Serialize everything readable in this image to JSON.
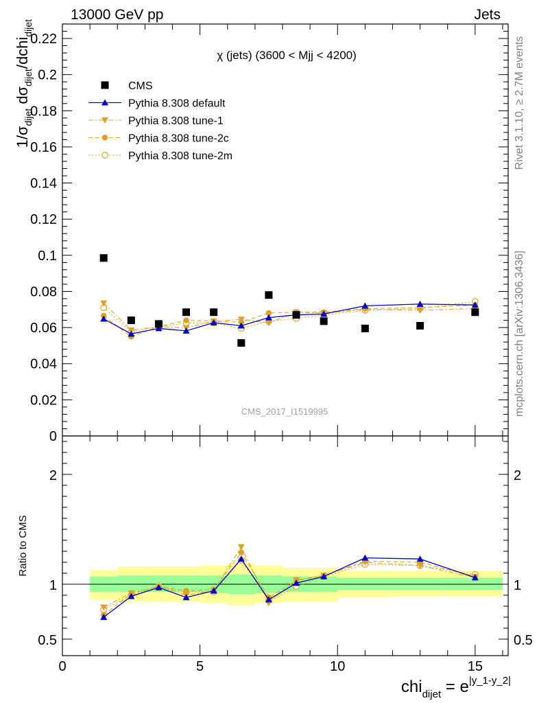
{
  "header": {
    "left": "13000 GeV pp",
    "right": "Jets"
  },
  "side_labels": {
    "rivet": "Rivet 3.1.10, ≥ 2.7M events",
    "mcplots": "mcplots.cern.ch [arXiv:1306.3436]"
  },
  "colors": {
    "cms": "#000000",
    "default": "#0000cc",
    "tunes": "#e0a020",
    "band_inner": "#99ff99",
    "band_outer": "#ffff99"
  },
  "chart_data": [
    {
      "type": "line",
      "panel": "main",
      "title": "χ (jets) (3600 < Mjj < 4200)",
      "watermark": "CMS_2017_I1519995",
      "ylabel": {
        "base": "1/σ",
        "sub1": "dijet",
        "mid": " dσ",
        "sub2": "dijet",
        "tail": "/dchi",
        "sub3": "dijet"
      },
      "xlim": [
        0,
        16.2
      ],
      "ylim": [
        0,
        0.228
      ],
      "yticks": [
        0,
        0.02,
        0.04,
        0.06,
        0.08,
        0.1,
        0.12,
        0.14,
        0.16,
        0.18,
        0.2,
        0.22
      ],
      "ytick_labels": [
        "0",
        "0.02",
        "0.04",
        "0.06",
        "0.08",
        "0.1",
        "0.12",
        "0.14",
        "0.16",
        "0.18",
        "0.2",
        "0.22"
      ],
      "legend_position": "top-left",
      "series": [
        {
          "name": "CMS",
          "marker": "square",
          "x": [
            1.5,
            2.5,
            3.5,
            4.5,
            5.5,
            6.5,
            7.5,
            8.5,
            9.5,
            11,
            13,
            15
          ],
          "y": [
            0.0985,
            0.064,
            0.062,
            0.0685,
            0.0685,
            0.0515,
            0.078,
            0.067,
            0.0635,
            0.0595,
            0.061,
            0.0685
          ]
        },
        {
          "name": "Pythia 8.308 default",
          "marker": "triangle-up",
          "style": "solid",
          "x": [
            1.5,
            2.5,
            3.5,
            4.5,
            5.5,
            6.5,
            7.5,
            8.5,
            9.5,
            11,
            13,
            15
          ],
          "y": [
            0.0648,
            0.0565,
            0.0595,
            0.0582,
            0.0627,
            0.061,
            0.0655,
            0.067,
            0.0675,
            0.072,
            0.073,
            0.0725
          ]
        },
        {
          "name": "Pythia 8.308 tune-1",
          "marker": "triangle-down",
          "style": "dashdot",
          "x": [
            1.5,
            2.5,
            3.5,
            4.5,
            5.5,
            6.5,
            7.5,
            8.5,
            9.5,
            11,
            13,
            15
          ],
          "y": [
            0.0735,
            0.0585,
            0.0605,
            0.0598,
            0.0635,
            0.0645,
            0.0625,
            0.0685,
            0.068,
            0.07,
            0.0695,
            0.0705
          ]
        },
        {
          "name": "Pythia 8.308 tune-2c",
          "marker": "circle",
          "style": "dashed",
          "x": [
            1.5,
            2.5,
            3.5,
            4.5,
            5.5,
            6.5,
            7.5,
            8.5,
            9.5,
            11,
            13,
            15
          ],
          "y": [
            0.0665,
            0.055,
            0.0605,
            0.064,
            0.0635,
            0.063,
            0.068,
            0.0685,
            0.0685,
            0.0705,
            0.071,
            0.0725
          ]
        },
        {
          "name": "Pythia 8.308 tune-2m",
          "marker": "circle-open",
          "style": "dotted",
          "x": [
            1.5,
            2.5,
            3.5,
            4.5,
            5.5,
            6.5,
            7.5,
            8.5,
            9.5,
            11,
            13,
            15
          ],
          "y": [
            0.071,
            0.0575,
            0.0605,
            0.0625,
            0.0625,
            0.0595,
            0.0635,
            0.065,
            0.067,
            0.0695,
            0.0705,
            0.0745
          ]
        }
      ]
    },
    {
      "type": "line",
      "panel": "ratio",
      "ylabel": "Ratio to CMS",
      "xlabel": {
        "base": "chi",
        "sub": "dijet",
        "mid": " = e",
        "sup": "|y_1-y_2|"
      },
      "xlim": [
        0,
        16.2
      ],
      "xticks": [
        0,
        5,
        10,
        15
      ],
      "xtick_labels": [
        "0",
        "5",
        "10",
        "15"
      ],
      "ylim": [
        0.35,
        2.35
      ],
      "yticks": [
        0.5,
        1,
        2
      ],
      "ytick_labels": [
        "0.5",
        "1",
        "2"
      ],
      "bands": [
        {
          "x0": 1,
          "x1": 2,
          "inner": [
            0.93,
            1.07
          ],
          "outer": [
            0.86,
            1.13
          ]
        },
        {
          "x0": 2,
          "x1": 3,
          "inner": [
            0.93,
            1.08
          ],
          "outer": [
            0.84,
            1.16
          ]
        },
        {
          "x0": 3,
          "x1": 4,
          "inner": [
            0.93,
            1.08
          ],
          "outer": [
            0.84,
            1.16
          ]
        },
        {
          "x0": 4,
          "x1": 5,
          "inner": [
            0.93,
            1.08
          ],
          "outer": [
            0.84,
            1.16
          ]
        },
        {
          "x0": 5,
          "x1": 6,
          "inner": [
            0.92,
            1.08
          ],
          "outer": [
            0.83,
            1.17
          ]
        },
        {
          "x0": 6,
          "x1": 7,
          "inner": [
            0.91,
            1.09
          ],
          "outer": [
            0.81,
            1.19
          ]
        },
        {
          "x0": 7,
          "x1": 8,
          "inner": [
            0.92,
            1.08
          ],
          "outer": [
            0.83,
            1.17
          ]
        },
        {
          "x0": 8,
          "x1": 10,
          "inner": [
            0.93,
            1.07
          ],
          "outer": [
            0.84,
            1.15
          ]
        },
        {
          "x0": 10,
          "x1": 12,
          "inner": [
            0.95,
            1.06
          ],
          "outer": [
            0.88,
            1.12
          ]
        },
        {
          "x0": 12,
          "x1": 14,
          "inner": [
            0.95,
            1.06
          ],
          "outer": [
            0.89,
            1.12
          ]
        },
        {
          "x0": 14,
          "x1": 16,
          "inner": [
            0.95,
            1.06
          ],
          "outer": [
            0.89,
            1.12
          ]
        }
      ],
      "series": [
        {
          "name": "Pythia 8.308 default",
          "marker": "triangle-up",
          "style": "solid",
          "x": [
            1.5,
            2.5,
            3.5,
            4.5,
            5.5,
            6.5,
            7.5,
            8.5,
            9.5,
            11,
            13,
            15
          ],
          "y": [
            0.7,
            0.89,
            0.97,
            0.88,
            0.94,
            1.23,
            0.86,
            1.01,
            1.07,
            1.24,
            1.23,
            1.06
          ]
        },
        {
          "name": "Pythia 8.308 tune-1",
          "marker": "triangle-down",
          "style": "dashdot",
          "x": [
            1.5,
            2.5,
            3.5,
            4.5,
            5.5,
            6.5,
            7.5,
            8.5,
            9.5,
            11,
            13,
            15
          ],
          "y": [
            0.79,
            0.92,
            0.98,
            0.9,
            0.94,
            1.34,
            0.83,
            1.04,
            1.08,
            1.2,
            1.17,
            1.06
          ]
        },
        {
          "name": "Pythia 8.308 tune-2c",
          "marker": "circle",
          "style": "dashed",
          "x": [
            1.5,
            2.5,
            3.5,
            4.5,
            5.5,
            6.5,
            7.5,
            8.5,
            9.5,
            11,
            13,
            15
          ],
          "y": [
            0.72,
            0.91,
            0.98,
            0.94,
            0.95,
            1.29,
            0.88,
            1.03,
            1.08,
            1.21,
            1.2,
            1.07
          ]
        },
        {
          "name": "Pythia 8.308 tune-2m",
          "marker": "circle-open",
          "style": "dotted",
          "x": [
            1.5,
            2.5,
            3.5,
            4.5,
            5.5,
            6.5,
            7.5,
            8.5,
            9.5,
            11,
            13,
            15
          ],
          "y": [
            0.77,
            0.9,
            0.97,
            0.93,
            0.93,
            1.22,
            0.85,
            0.98,
            1.07,
            1.18,
            1.17,
            1.09
          ]
        }
      ]
    }
  ]
}
